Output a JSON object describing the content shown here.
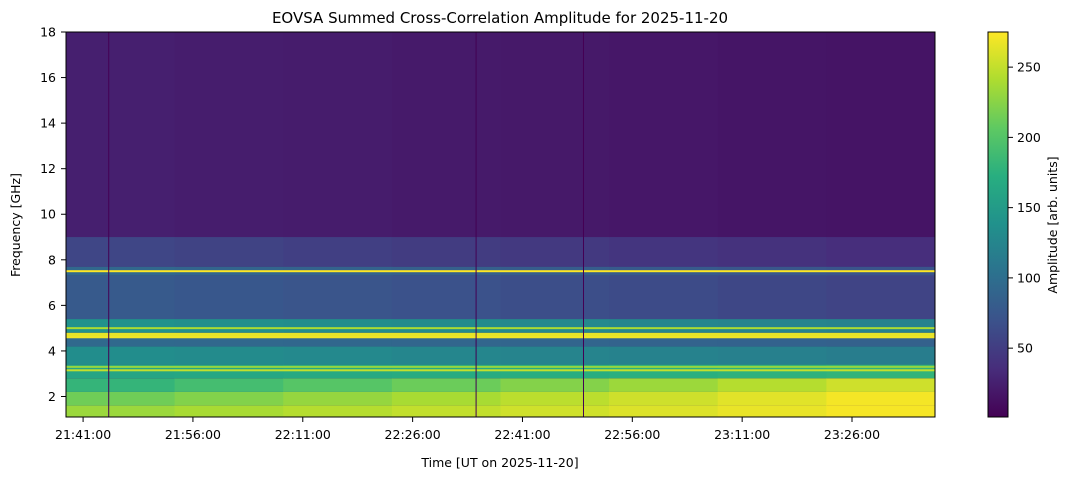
{
  "chart_data": {
    "type": "heatmap",
    "title": "EOVSA Summed Cross-Correlation Amplitude for 2025-11-20",
    "xlabel": "Time [UT on 2025-11-20]",
    "ylabel": "Frequency [GHz]",
    "colorbar_label": "Amplitude [arb. units]",
    "colormap": "viridis",
    "x_range": [
      "21:38:40",
      "23:37:20"
    ],
    "x_ticks": [
      "21:41:00",
      "21:56:00",
      "22:11:00",
      "22:26:00",
      "22:41:00",
      "22:56:00",
      "23:11:00",
      "23:26:00"
    ],
    "y_range": [
      1.1,
      18.0
    ],
    "y_ticks": [
      2,
      4,
      6,
      8,
      10,
      12,
      14,
      16,
      18
    ],
    "color_range": [
      1,
      275
    ],
    "color_ticks": [
      50,
      100,
      150,
      200,
      250
    ],
    "grid": false,
    "data_gaps_ut": [
      "21:44:30",
      "22:34:40",
      "22:49:20"
    ],
    "bands": [
      {
        "f_low": 1.1,
        "f_high": 1.6,
        "amplitude_start": 230,
        "amplitude_end": 275
      },
      {
        "f_low": 1.6,
        "f_high": 2.2,
        "amplitude_start": 210,
        "amplitude_end": 275
      },
      {
        "f_low": 2.2,
        "f_high": 2.8,
        "amplitude_start": 175,
        "amplitude_end": 260
      },
      {
        "f_low": 2.8,
        "f_high": 3.4,
        "amplitude_start": 160,
        "amplitude_end": 180
      },
      {
        "f_low": 3.4,
        "f_high": 4.2,
        "amplitude_start": 135,
        "amplitude_end": 115
      },
      {
        "f_low": 4.2,
        "f_high": 4.6,
        "amplitude_start": 95,
        "amplitude_end": 85
      },
      {
        "f_low": 4.6,
        "f_high": 4.8,
        "amplitude_start": 265,
        "amplitude_end": 265
      },
      {
        "f_low": 4.8,
        "f_high": 5.4,
        "amplitude_start": 140,
        "amplitude_end": 120
      },
      {
        "f_low": 5.4,
        "f_high": 7.3,
        "amplitude_start": 80,
        "amplitude_end": 55
      },
      {
        "f_low": 7.3,
        "f_high": 7.7,
        "amplitude_start": 95,
        "amplitude_end": 70
      },
      {
        "f_low": 7.7,
        "f_high": 9.0,
        "amplitude_start": 60,
        "amplitude_end": 35
      },
      {
        "f_low": 9.0,
        "f_high": 18.0,
        "amplitude_start": 25,
        "amplitude_end": 15
      }
    ],
    "spectral_lines": [
      {
        "freq": 7.5,
        "amplitude": 275
      },
      {
        "freq": 4.6,
        "amplitude": 270
      },
      {
        "freq": 5.0,
        "amplitude": 240
      },
      {
        "freq": 3.15,
        "amplitude": 250
      },
      {
        "freq": 3.3,
        "amplitude": 230
      }
    ]
  }
}
